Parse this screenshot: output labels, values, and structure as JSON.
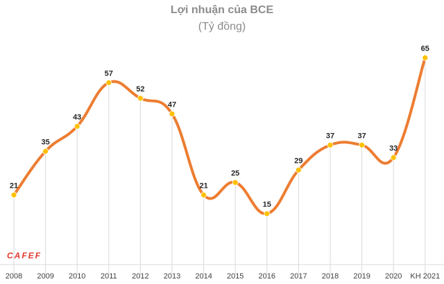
{
  "chart_data": {
    "type": "line",
    "title": "Lợi nhuận của BCE",
    "subtitle": "(Tỷ đồng)",
    "categories": [
      "2008",
      "2009",
      "2010",
      "2011",
      "2012",
      "2013",
      "2014",
      "2015",
      "2016",
      "2017",
      "2018",
      "2019",
      "2020",
      "KH 2021"
    ],
    "series": [
      {
        "values": [
          21,
          35,
          43,
          57,
          52,
          47,
          21,
          25,
          15,
          29,
          37,
          37,
          33,
          65
        ]
      }
    ],
    "ylim": [
      0,
      70
    ],
    "grid": false,
    "line_color": "#ed7d31",
    "marker_color": "#ffc000"
  },
  "watermark": "CAFEF"
}
